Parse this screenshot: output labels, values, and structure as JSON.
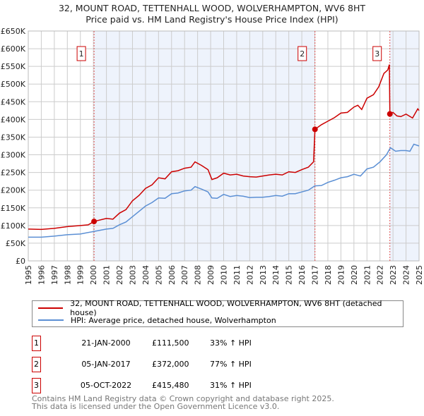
{
  "chart_data": {
    "type": "line",
    "title": "32, MOUNT ROAD, TETTENHALL WOOD, WOLVERHAMPTON, WV6 8HT",
    "subtitle": "Price paid vs. HM Land Registry's House Price Index (HPI)",
    "xlim": [
      1995,
      2025
    ],
    "ylim": [
      0,
      650000
    ],
    "x_ticks": [
      "1995",
      "1996",
      "1997",
      "1998",
      "1999",
      "2000",
      "2001",
      "2002",
      "2003",
      "2004",
      "2005",
      "2006",
      "2007",
      "2008",
      "2009",
      "2010",
      "2011",
      "2012",
      "2013",
      "2014",
      "2015",
      "2016",
      "2017",
      "2018",
      "2019",
      "2020",
      "2021",
      "2022",
      "2023",
      "2024",
      "2025"
    ],
    "y_ticks": [
      "£0",
      "£50K",
      "£100K",
      "£150K",
      "£200K",
      "£250K",
      "£300K",
      "£350K",
      "£400K",
      "£450K",
      "£500K",
      "£550K",
      "£600K",
      "£650K"
    ],
    "grid": true,
    "shaded_ranges": [
      [
        2000.05,
        2017.01
      ],
      [
        2022.76,
        2025
      ]
    ],
    "series": [
      {
        "name": "32, MOUNT ROAD, TETTENHALL WOOD, WOLVERHAMPTON, WV6 8HT (detached house)",
        "color": "#cc0000",
        "x": [
          1995,
          1996,
          1997,
          1998,
          1999,
          1999.6,
          2000.05,
          2001,
          2001.5,
          2002,
          2002.5,
          2003,
          2003.5,
          2004,
          2004.5,
          2005,
          2005.5,
          2006,
          2006.5,
          2007,
          2007.5,
          2007.8,
          2008.3,
          2008.8,
          2009.1,
          2009.5,
          2010,
          2010.5,
          2011,
          2011.5,
          2012,
          2012.5,
          2013,
          2013.5,
          2014,
          2014.5,
          2015,
          2015.5,
          2016,
          2016.5,
          2016.9,
          2017.01,
          2017.5,
          2018,
          2018.5,
          2019,
          2019.5,
          2020,
          2020.3,
          2020.6,
          2021,
          2021.5,
          2021.9,
          2022.3,
          2022.6,
          2022.72,
          2022.76,
          2023,
          2023.3,
          2023.6,
          2024,
          2024.5,
          2024.9,
          2025
        ],
        "y": [
          90000,
          89000,
          92000,
          97000,
          100000,
          102000,
          111500,
          120000,
          118000,
          135000,
          145000,
          170000,
          185000,
          205000,
          215000,
          235000,
          232000,
          252000,
          255000,
          262000,
          265000,
          280000,
          270000,
          258000,
          230000,
          235000,
          248000,
          243000,
          245000,
          240000,
          238000,
          237000,
          240000,
          243000,
          245000,
          243000,
          252000,
          250000,
          258000,
          265000,
          280000,
          372000,
          385000,
          395000,
          405000,
          418000,
          420000,
          435000,
          440000,
          428000,
          460000,
          470000,
          492000,
          530000,
          540000,
          555000,
          415480,
          420000,
          410000,
          408000,
          415000,
          404000,
          430000,
          425000
        ]
      },
      {
        "name": "HPI: Average price, detached house, Wolverhampton",
        "color": "#5b8fd4",
        "x": [
          1995,
          1996,
          1997,
          1998,
          1999,
          2000,
          2001,
          2001.5,
          2002,
          2002.5,
          2003,
          2003.5,
          2004,
          2004.5,
          2005,
          2005.5,
          2006,
          2006.5,
          2007,
          2007.5,
          2007.8,
          2008.3,
          2008.8,
          2009.1,
          2009.5,
          2010,
          2010.5,
          2011,
          2011.5,
          2012,
          2012.5,
          2013,
          2013.5,
          2014,
          2014.5,
          2015,
          2015.5,
          2016,
          2016.5,
          2017,
          2017.5,
          2018,
          2018.5,
          2019,
          2019.5,
          2020,
          2020.5,
          2021,
          2021.5,
          2022,
          2022.5,
          2022.8,
          2023.2,
          2023.6,
          2024,
          2024.3,
          2024.6,
          2025
        ],
        "y": [
          67000,
          67000,
          70000,
          74000,
          76000,
          83000,
          90000,
          92000,
          102000,
          110000,
          125000,
          140000,
          155000,
          165000,
          178000,
          177000,
          190000,
          192000,
          198000,
          200000,
          210000,
          203000,
          195000,
          178000,
          177000,
          188000,
          182000,
          185000,
          183000,
          179000,
          180000,
          180000,
          182000,
          185000,
          183000,
          190000,
          190000,
          195000,
          200000,
          212000,
          213000,
          222000,
          228000,
          235000,
          238000,
          245000,
          240000,
          260000,
          265000,
          280000,
          300000,
          320000,
          310000,
          312000,
          312000,
          310000,
          330000,
          325000
        ]
      }
    ],
    "sales": [
      {
        "label": "1",
        "x": 2000.05,
        "y": 111500,
        "date": "21-JAN-2000",
        "price": "£111,500",
        "hpi": "33% ↑ HPI"
      },
      {
        "label": "2",
        "x": 2017.01,
        "y": 372000,
        "date": "05-JAN-2017",
        "price": "£372,000",
        "hpi": "77% ↑ HPI"
      },
      {
        "label": "3",
        "x": 2022.76,
        "y": 415480,
        "date": "05-OCT-2022",
        "price": "£415,480",
        "hpi": "31% ↑ HPI"
      }
    ],
    "legend_position": "below"
  },
  "footer": {
    "line1": "Contains HM Land Registry data © Crown copyright and database right 2025.",
    "line2": "This data is licensed under the Open Government Licence v3.0."
  }
}
